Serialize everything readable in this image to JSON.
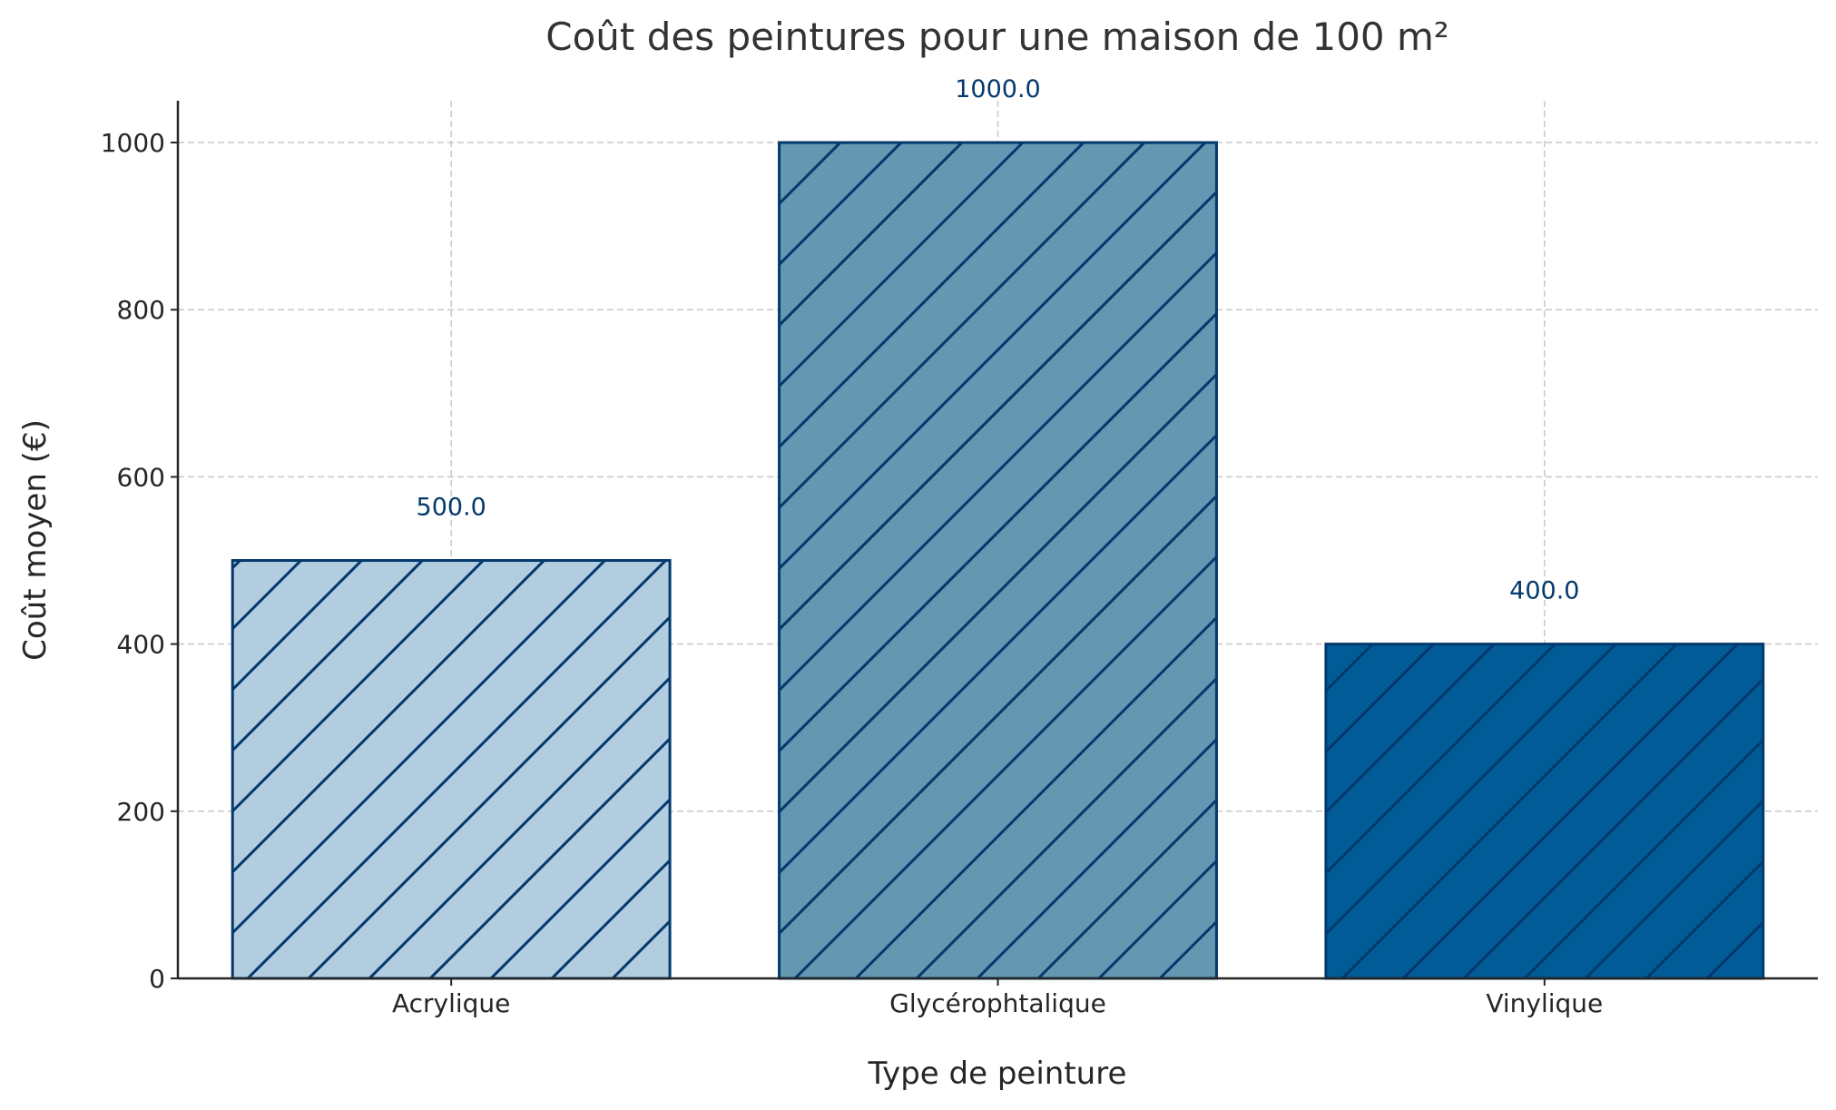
{
  "chart_data": {
    "type": "bar",
    "title": "Coût des peintures pour une maison de 100 m²",
    "xlabel": "Type de peinture",
    "ylabel": "Coût moyen (€)",
    "categories": [
      "Acrylique",
      "Glycérophtalique",
      "Vinylique"
    ],
    "values": [
      500,
      1000,
      400
    ],
    "data_labels": [
      "500.0",
      "1000.0",
      "400.0"
    ],
    "ylim": [
      0,
      1050
    ],
    "yticks": [
      0,
      200,
      400,
      600,
      800,
      1000
    ],
    "ytick_labels": [
      "0",
      "200",
      "400",
      "600",
      "800",
      "1000"
    ],
    "grid": true,
    "hatch": "diagonal",
    "colors": [
      "#b3cde0",
      "#6497b1",
      "#005b96"
    ],
    "edge_color": "#03396c",
    "label_color": "#03396c"
  }
}
